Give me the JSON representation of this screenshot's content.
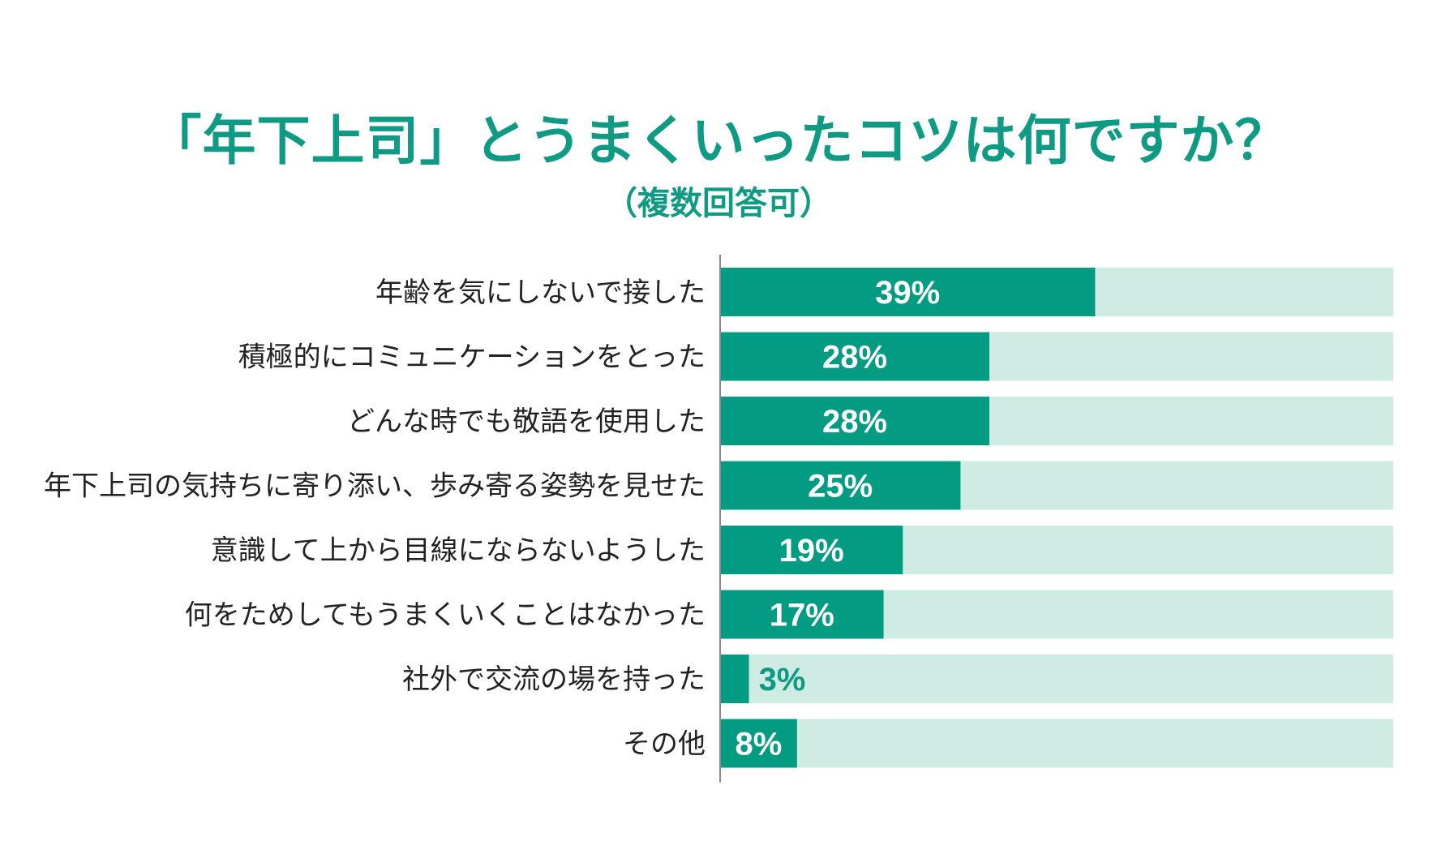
{
  "header": {
    "title": "「年下上司」とうまくいったコツは何ですか？",
    "subtitle": "（複数回答可）"
  },
  "colors": {
    "accent": "#0e9a83",
    "bar": "#049b83",
    "track": "#ceebe4",
    "axis": "#888888",
    "label_text": "#222222"
  },
  "chart_data": {
    "type": "bar",
    "orientation": "horizontal",
    "categories": [
      "年齢を気にしないで接した",
      "積極的にコミュニケーションをとった",
      "どんな時でも敬語を使用した",
      "年下上司の気持ちに寄り添い、歩み寄る姿勢を見せた",
      "意識して上から目線にならないようした",
      "何をためしてもうまくいくことはなかった",
      "社外で交流の場を持った",
      "その他"
    ],
    "values": [
      39,
      28,
      28,
      25,
      19,
      17,
      3,
      8
    ],
    "value_labels": [
      "39%",
      "28%",
      "28%",
      "25%",
      "19%",
      "17%",
      "3%",
      "8%"
    ],
    "unit": "%",
    "xlim": [
      0,
      70
    ],
    "grid": false,
    "legend": "none"
  }
}
